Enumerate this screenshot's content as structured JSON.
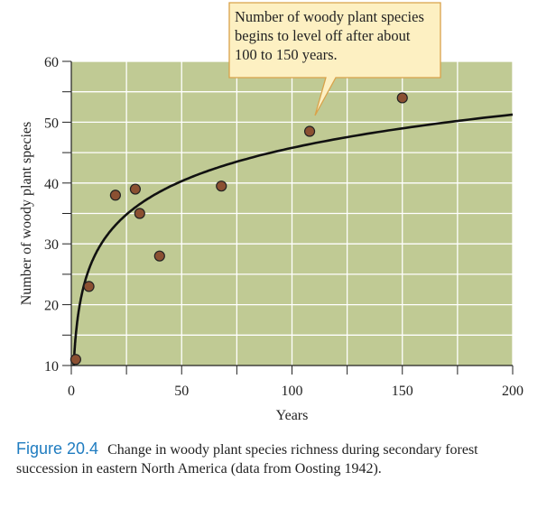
{
  "chart_data": {
    "type": "scatter",
    "xlabel": "Years",
    "ylabel": "Number of  woody plant species",
    "xlim": [
      0,
      200
    ],
    "ylim": [
      10,
      60
    ],
    "xticks": [
      0,
      50,
      100,
      150,
      200
    ],
    "yticks": [
      10,
      20,
      30,
      40,
      50,
      60
    ],
    "grid": true,
    "points": [
      {
        "x": 2,
        "y": 11
      },
      {
        "x": 8,
        "y": 23
      },
      {
        "x": 20,
        "y": 38
      },
      {
        "x": 29,
        "y": 39
      },
      {
        "x": 31,
        "y": 35
      },
      {
        "x": 40,
        "y": 28
      },
      {
        "x": 68,
        "y": 39.5
      },
      {
        "x": 108,
        "y": 48.5
      },
      {
        "x": 150,
        "y": 54
      }
    ],
    "trend_curve": {
      "form": "logarithmic",
      "a": 9.4,
      "b": 7.9
    },
    "annotation": "Number of woody plant species begins to level off after about 100 to 150 years.",
    "colors": {
      "plot_bg": "#c0ca94",
      "grid": "#ffffff",
      "point_fill": "#8b5032",
      "callout_bg": "#fdf0c2",
      "callout_border": "#d9a24a",
      "figure_label": "#1f7cc0"
    }
  },
  "caption": {
    "label": "Figure 20.4",
    "text": "Change in woody plant species richness during secondary forest succession in eastern North America (data from Oosting 1942)."
  }
}
